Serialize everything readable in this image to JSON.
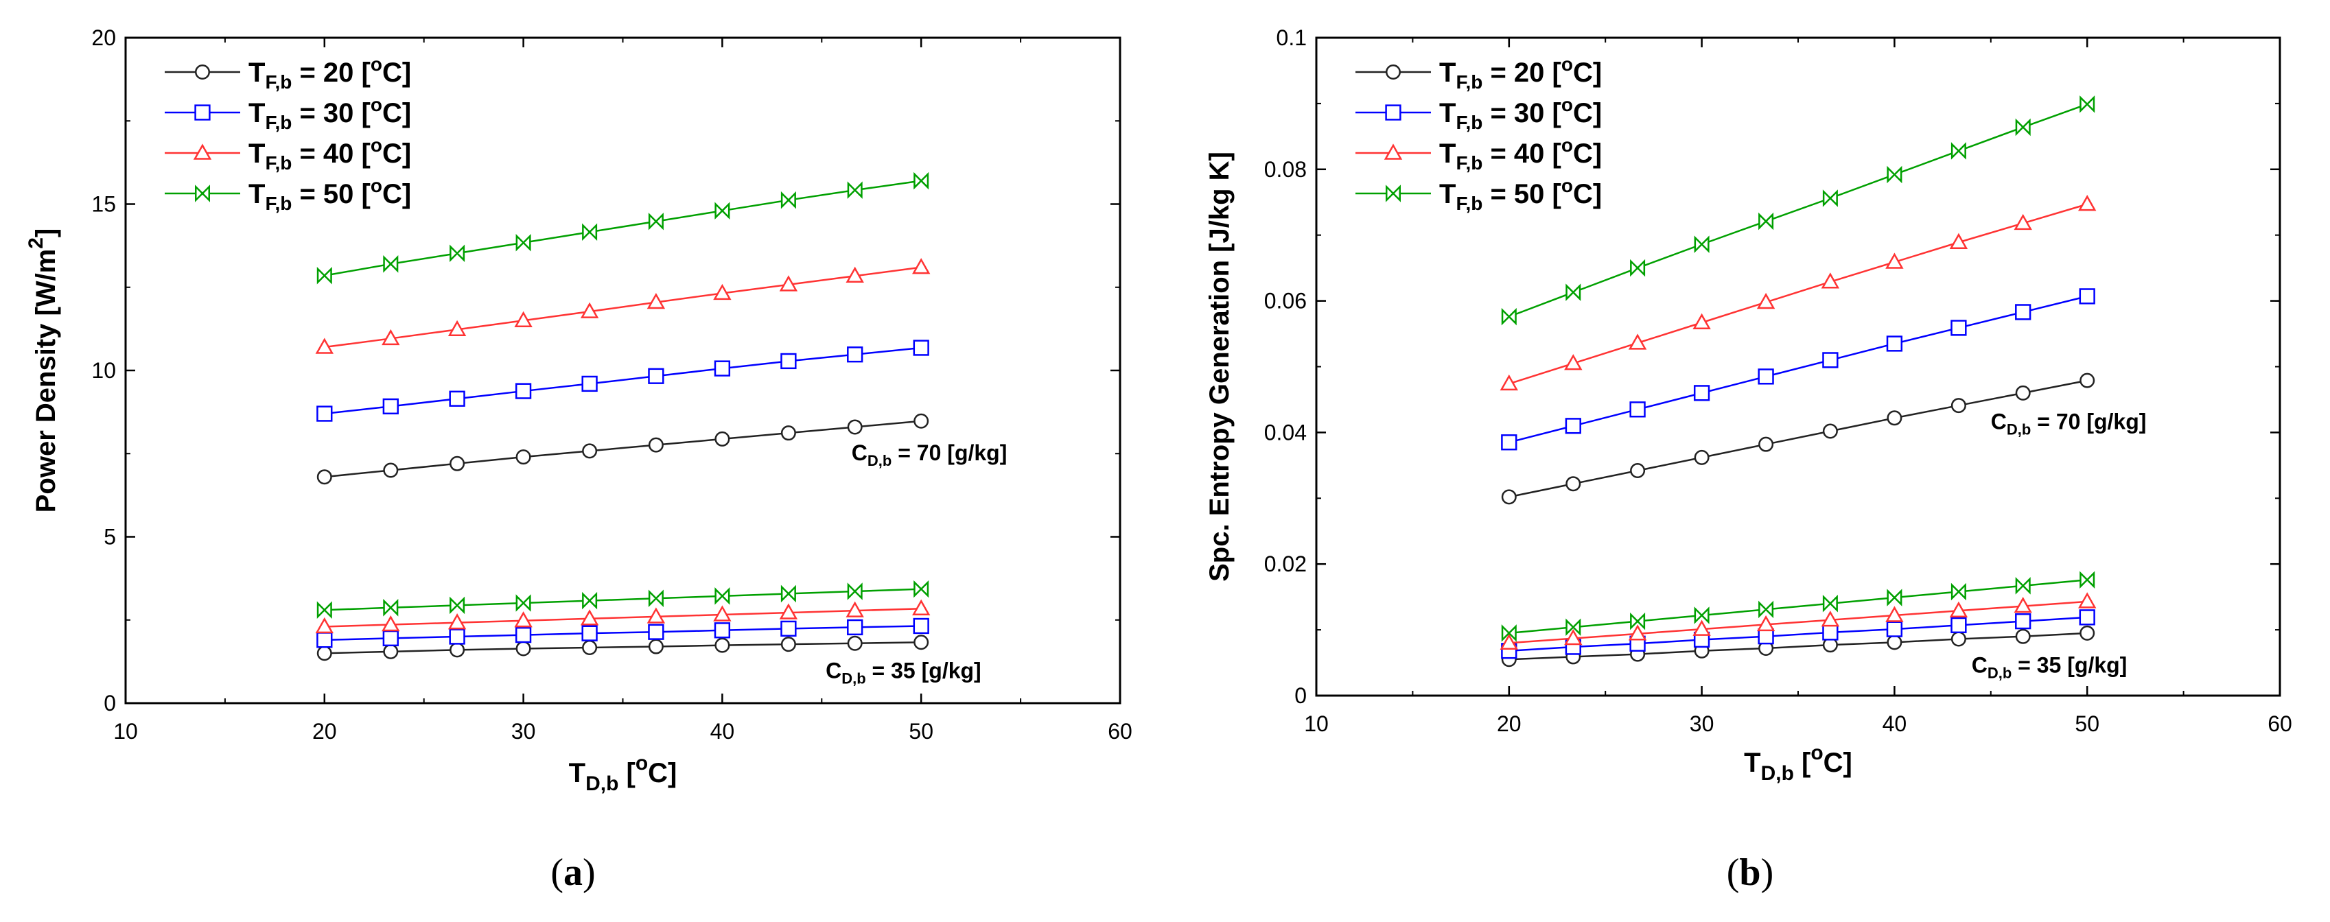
{
  "figure": {
    "panel_a": {
      "open": "(",
      "letter": "a",
      "close": ")"
    },
    "panel_b": {
      "open": "(",
      "letter": "b",
      "close": ")"
    }
  },
  "chart_data": [
    {
      "id": "a",
      "type": "line",
      "title": "",
      "ylabel": "Power Density [W/m²]",
      "ylabel_main": "Power Density [W/m",
      "ylabel_sup": "2",
      "ylabel_end": "]",
      "xlabel_main": "T",
      "xlabel_sub": "D,b",
      "xlabel_unit_open": "  [",
      "xlabel_unit_sup": "o",
      "xlabel_unit_close": "C]",
      "xlim": [
        10,
        60
      ],
      "ylim": [
        0,
        20
      ],
      "xticks": [
        10,
        20,
        30,
        40,
        50,
        60
      ],
      "yticks": [
        0,
        5,
        10,
        15,
        20
      ],
      "tick_format": "int",
      "grid": false,
      "legend_position": "top-left",
      "x": [
        20,
        23.33,
        26.67,
        30,
        33.33,
        36.67,
        40,
        43.33,
        46.67,
        50
      ],
      "series": [
        {
          "name": "T_F,b = 20 [°C]",
          "tsub": "F,b",
          "eq": " = 20  [",
          "sup": "o",
          "tail": "C]",
          "color": "#222222",
          "marker": "circle",
          "legend": true,
          "values": [
            6.8,
            7.0,
            7.2,
            7.4,
            7.58,
            7.76,
            7.94,
            8.12,
            8.3,
            8.48
          ]
        },
        {
          "name": "T_F,b = 30 [°C]",
          "tsub": "F,b",
          "eq": " = 30  [",
          "sup": "o",
          "tail": "C]",
          "color": "#0000ff",
          "marker": "square",
          "legend": true,
          "values": [
            8.7,
            8.92,
            9.15,
            9.38,
            9.6,
            9.83,
            10.06,
            10.28,
            10.48,
            10.68
          ]
        },
        {
          "name": "T_F,b = 40 [°C]",
          "tsub": "F,b",
          "eq": " = 40  [",
          "sup": "o",
          "tail": "C]",
          "color": "#ff3333",
          "marker": "triangle",
          "legend": true,
          "values": [
            10.7,
            10.96,
            11.23,
            11.5,
            11.77,
            12.05,
            12.32,
            12.58,
            12.84,
            13.1
          ]
        },
        {
          "name": "T_F,b = 50 [°C]",
          "tsub": "F,b",
          "eq": " = 50  [",
          "sup": "o",
          "tail": "C]",
          "color": "#00a000",
          "marker": "bowtie",
          "legend": true,
          "values": [
            12.85,
            13.2,
            13.52,
            13.84,
            14.16,
            14.48,
            14.8,
            15.12,
            15.42,
            15.7
          ]
        },
        {
          "name": "T_F,b = 20 [°C], C_D,b = 35",
          "color": "#222222",
          "marker": "circle",
          "legend": false,
          "values": [
            1.5,
            1.55,
            1.6,
            1.64,
            1.67,
            1.7,
            1.74,
            1.77,
            1.8,
            1.83
          ]
        },
        {
          "name": "T_F,b = 30 [°C], C_D,b = 35",
          "color": "#0000ff",
          "marker": "square",
          "legend": false,
          "values": [
            1.9,
            1.95,
            2.0,
            2.05,
            2.1,
            2.14,
            2.19,
            2.24,
            2.28,
            2.32
          ]
        },
        {
          "name": "T_F,b = 40 [°C], C_D,b = 35",
          "color": "#ff3333",
          "marker": "triangle",
          "legend": false,
          "values": [
            2.3,
            2.36,
            2.42,
            2.48,
            2.54,
            2.6,
            2.66,
            2.72,
            2.78,
            2.84
          ]
        },
        {
          "name": "T_F,b = 50 [°C], C_D,b = 35",
          "color": "#00a000",
          "marker": "bowtie",
          "legend": false,
          "values": [
            2.8,
            2.87,
            2.94,
            3.01,
            3.08,
            3.15,
            3.22,
            3.29,
            3.36,
            3.43
          ]
        }
      ],
      "annotations": [
        {
          "name": "cdb-70-label",
          "main": "C",
          "sub": "D,b",
          "rest": " = 70 [g/kg]",
          "at_x": 46.5,
          "at_y": 7.3
        },
        {
          "name": "cdb-35-label",
          "main": "C",
          "sub": "D,b",
          "rest": " = 35 [g/kg]",
          "at_x": 45.2,
          "at_y": 0.75
        }
      ]
    },
    {
      "id": "b",
      "type": "line",
      "title": "",
      "ylabel": "Spc. Entropy Generation [J/kg K]",
      "ylabel_main": "Spc. Entropy Generation [J/kg K]",
      "ylabel_sup": "",
      "ylabel_end": "",
      "xlabel_main": "T",
      "xlabel_sub": "D,b",
      "xlabel_unit_open": "  [",
      "xlabel_unit_sup": "o",
      "xlabel_unit_close": "C]",
      "xlim": [
        10,
        60
      ],
      "ylim": [
        0,
        0.1
      ],
      "xticks": [
        10,
        20,
        30,
        40,
        50,
        60
      ],
      "yticks": [
        0,
        0.02,
        0.04,
        0.06,
        0.08,
        0.1
      ],
      "tick_format": "trim",
      "grid": false,
      "legend_position": "top-left",
      "x": [
        20,
        23.33,
        26.67,
        30,
        33.33,
        36.67,
        40,
        43.33,
        46.67,
        50
      ],
      "series": [
        {
          "name": "T_F,b = 20 [°C]",
          "tsub": "F,b",
          "eq": " = 20  [",
          "sup": "o",
          "tail": "C]",
          "color": "#222222",
          "marker": "circle",
          "legend": true,
          "values": [
            0.0302,
            0.0322,
            0.0342,
            0.0362,
            0.0382,
            0.0402,
            0.0422,
            0.0441,
            0.046,
            0.0479
          ]
        },
        {
          "name": "T_F,b = 30 [°C]",
          "tsub": "F,b",
          "eq": " = 30  [",
          "sup": "o",
          "tail": "C]",
          "color": "#0000ff",
          "marker": "square",
          "legend": true,
          "values": [
            0.0385,
            0.041,
            0.0435,
            0.046,
            0.0485,
            0.051,
            0.0535,
            0.0559,
            0.0583,
            0.0607
          ]
        },
        {
          "name": "T_F,b = 40 [°C]",
          "tsub": "F,b",
          "eq": " = 40  [",
          "sup": "o",
          "tail": "C]",
          "color": "#ff3333",
          "marker": "triangle",
          "legend": true,
          "values": [
            0.0474,
            0.0505,
            0.0536,
            0.0567,
            0.0598,
            0.0629,
            0.0659,
            0.0689,
            0.0718,
            0.0747
          ]
        },
        {
          "name": "T_F,b = 50 [°C]",
          "tsub": "F,b",
          "eq": " = 50  [",
          "sup": "o",
          "tail": "C]",
          "color": "#00a000",
          "marker": "bowtie",
          "legend": true,
          "values": [
            0.0576,
            0.0613,
            0.065,
            0.0686,
            0.0721,
            0.0756,
            0.0792,
            0.0828,
            0.0864,
            0.0899
          ]
        },
        {
          "name": "T_F,b = 20 [°C], C_D,b = 35",
          "color": "#222222",
          "marker": "circle",
          "legend": false,
          "values": [
            0.0055,
            0.0059,
            0.0063,
            0.0068,
            0.0072,
            0.0077,
            0.0081,
            0.0086,
            0.009,
            0.0095
          ]
        },
        {
          "name": "T_F,b = 30 [°C], C_D,b = 35",
          "color": "#0000ff",
          "marker": "square",
          "legend": false,
          "values": [
            0.0068,
            0.0074,
            0.0079,
            0.0085,
            0.009,
            0.0096,
            0.0101,
            0.0107,
            0.0113,
            0.0119
          ]
        },
        {
          "name": "T_F,b = 40 [°C], C_D,b = 35",
          "color": "#ff3333",
          "marker": "triangle",
          "legend": false,
          "values": [
            0.008,
            0.0087,
            0.0094,
            0.0101,
            0.0108,
            0.0115,
            0.0122,
            0.0129,
            0.0136,
            0.0143
          ]
        },
        {
          "name": "T_F,b = 50 [°C], C_D,b = 35",
          "color": "#00a000",
          "marker": "bowtie",
          "legend": false,
          "values": [
            0.0095,
            0.0104,
            0.0113,
            0.0122,
            0.0131,
            0.014,
            0.0149,
            0.0158,
            0.0167,
            0.0176
          ]
        }
      ],
      "annotations": [
        {
          "name": "cdb-70-label",
          "main": "C",
          "sub": "D,b",
          "rest": " = 70 [g/kg]",
          "at_x": 45,
          "at_y": 0.0405
        },
        {
          "name": "cdb-35-label",
          "main": "C",
          "sub": "D,b",
          "rest": " = 35 [g/kg]",
          "at_x": 44,
          "at_y": 0.0035
        }
      ]
    }
  ]
}
